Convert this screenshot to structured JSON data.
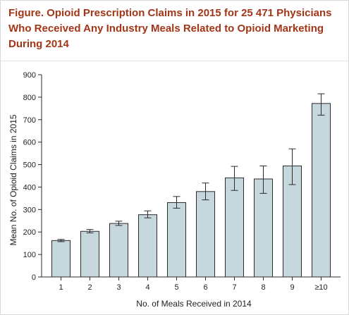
{
  "figure": {
    "title": "Figure. Opioid Prescription Claims in 2015 for 25 471 Physicians\nWho Received Any Industry Meals Related to Opioid Marketing\nDuring 2014"
  },
  "colors": {
    "title": "#a33518",
    "bar_fill": "#c5d6dd",
    "bar_stroke": "#2b2b2b",
    "axis": "#2b2b2b"
  },
  "chart_data": {
    "type": "bar",
    "title": "Figure. Opioid Prescription Claims in 2015 for 25 471 Physicians Who Received Any Industry Meals Related to Opioid Marketing During 2014",
    "xlabel": "No. of Meals Received in 2014",
    "ylabel": "Mean No. of Opioid Claims in 2015",
    "categories": [
      "1",
      "2",
      "3",
      "4",
      "5",
      "6",
      "7",
      "8",
      "9",
      "≥10"
    ],
    "values": [
      162,
      203,
      238,
      277,
      331,
      380,
      441,
      436,
      494,
      772
    ],
    "error_low": [
      157,
      196,
      229,
      263,
      306,
      343,
      385,
      372,
      411,
      720
    ],
    "error_high": [
      167,
      211,
      248,
      294,
      358,
      418,
      492,
      494,
      570,
      815
    ],
    "ylim": [
      0,
      900
    ],
    "yticks": [
      "0",
      "100",
      "200",
      "300",
      "400",
      "500",
      "600",
      "700",
      "800",
      "900"
    ],
    "grid": false,
    "legend": "none"
  }
}
